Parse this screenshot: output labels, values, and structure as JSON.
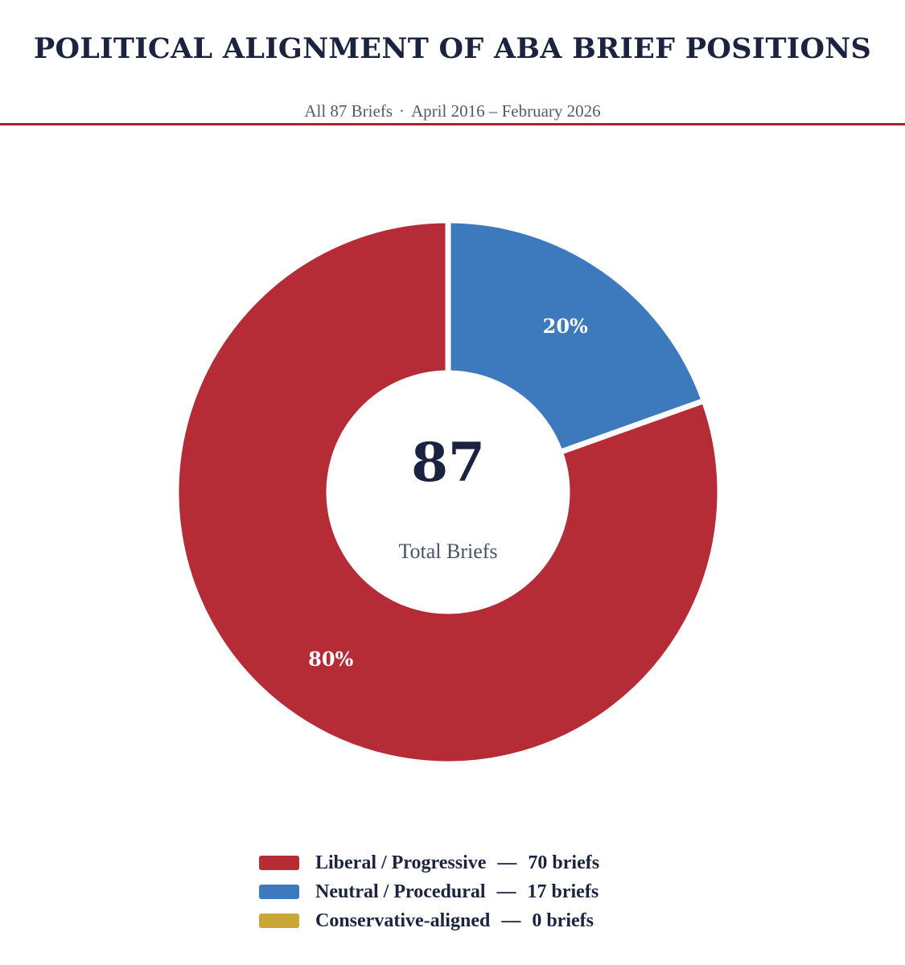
{
  "header": {
    "title": "POLITICAL ALIGNMENT OF ABA BRIEF POSITIONS",
    "subtitle_left": "All 87 Briefs",
    "subtitle_sep": "·",
    "subtitle_right": "April 2016 – February 2026"
  },
  "center": {
    "total": "87",
    "label": "Total Briefs"
  },
  "colors": {
    "liberal": "#b52b36",
    "neutral": "#3d7abd",
    "conservative": "#c8a737",
    "accent_rule": "#a8242f",
    "title": "#1b2340"
  },
  "chart_data": {
    "type": "pie",
    "variant": "donut",
    "title": "POLITICAL ALIGNMENT OF ABA BRIEF POSITIONS",
    "subtitle": "All 87 Briefs · April 2016 – February 2026",
    "total": 87,
    "slices": [
      {
        "key": "neutral",
        "label": "Neutral / Procedural",
        "value": 17,
        "percent_label": "20%",
        "color": "#3d7abd"
      },
      {
        "key": "liberal",
        "label": "Liberal / Progressive",
        "value": 70,
        "percent_label": "80%",
        "color": "#b52b36"
      },
      {
        "key": "conservative",
        "label": "Conservative-aligned",
        "value": 0,
        "percent_label": "0%",
        "color": "#c8a737"
      }
    ],
    "legend_position": "bottom-center"
  },
  "legend": {
    "dash": "—",
    "items": [
      {
        "label": "Liberal / Progressive",
        "count": "70 briefs",
        "color": "#b52b36"
      },
      {
        "label": "Neutral / Procedural",
        "count": "17 briefs",
        "color": "#3d7abd"
      },
      {
        "label": "Conservative-aligned",
        "count": "0 briefs",
        "color": "#c8a737"
      }
    ]
  }
}
